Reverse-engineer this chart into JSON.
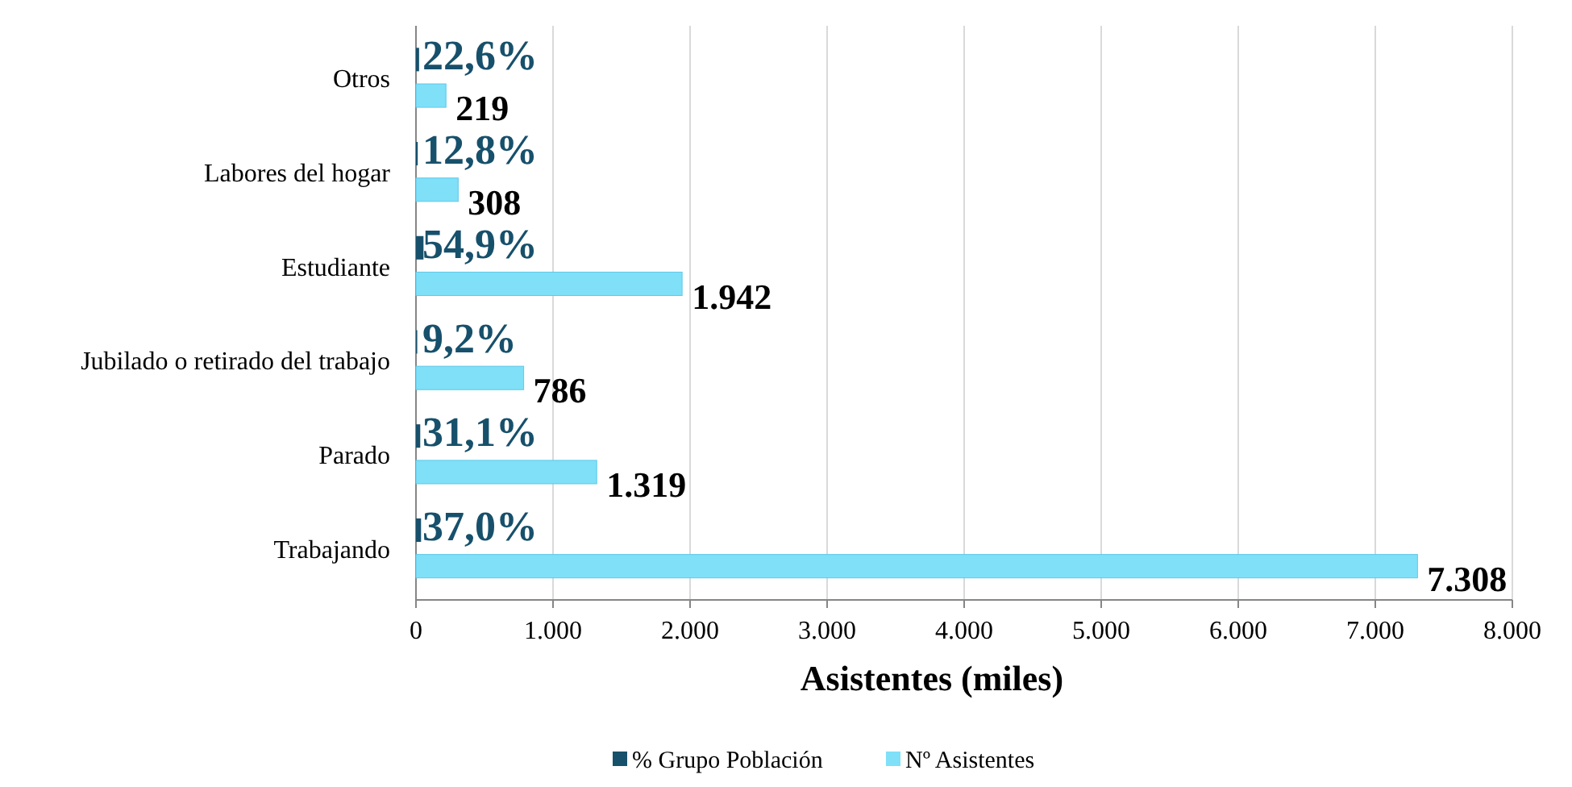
{
  "chart_data": {
    "type": "bar",
    "orientation": "horizontal",
    "categories": [
      "Otros",
      "Labores del hogar",
      "Estudiante",
      "Jubilado o retirado del trabajo",
      "Parado",
      "Trabajando"
    ],
    "series": [
      {
        "name": "% Grupo Población",
        "color": "#17506b",
        "values": [
          22.6,
          12.8,
          54.9,
          9.2,
          31.1,
          37.0
        ],
        "value_labels": [
          "22,6%",
          "12,8%",
          "54,9%",
          "9,2%",
          "31,1%",
          "37,0%"
        ]
      },
      {
        "name": "Nº Asistentes",
        "color": "#7fe0f8",
        "values": [
          219,
          308,
          1942,
          786,
          1319,
          7308
        ],
        "value_labels": [
          "219",
          "308",
          "1.942",
          "786",
          "1.319",
          "7.308"
        ]
      }
    ],
    "xlabel": "Asistentes (miles)",
    "xlim": [
      0,
      8000
    ],
    "xticks": [
      0,
      {
        "value": 1000,
        "label": "1.000"
      },
      {
        "value": 2000,
        "label": "2.000"
      },
      {
        "value": 3000,
        "label": "3.000"
      },
      {
        "value": 4000,
        "label": "4.000"
      },
      {
        "value": 5000,
        "label": "5.000"
      },
      {
        "value": 6000,
        "label": "6.000"
      },
      {
        "value": 7000,
        "label": "7.000"
      },
      {
        "value": 8000,
        "label": "8.000"
      }
    ],
    "grid": "x",
    "legend": "bottom"
  }
}
